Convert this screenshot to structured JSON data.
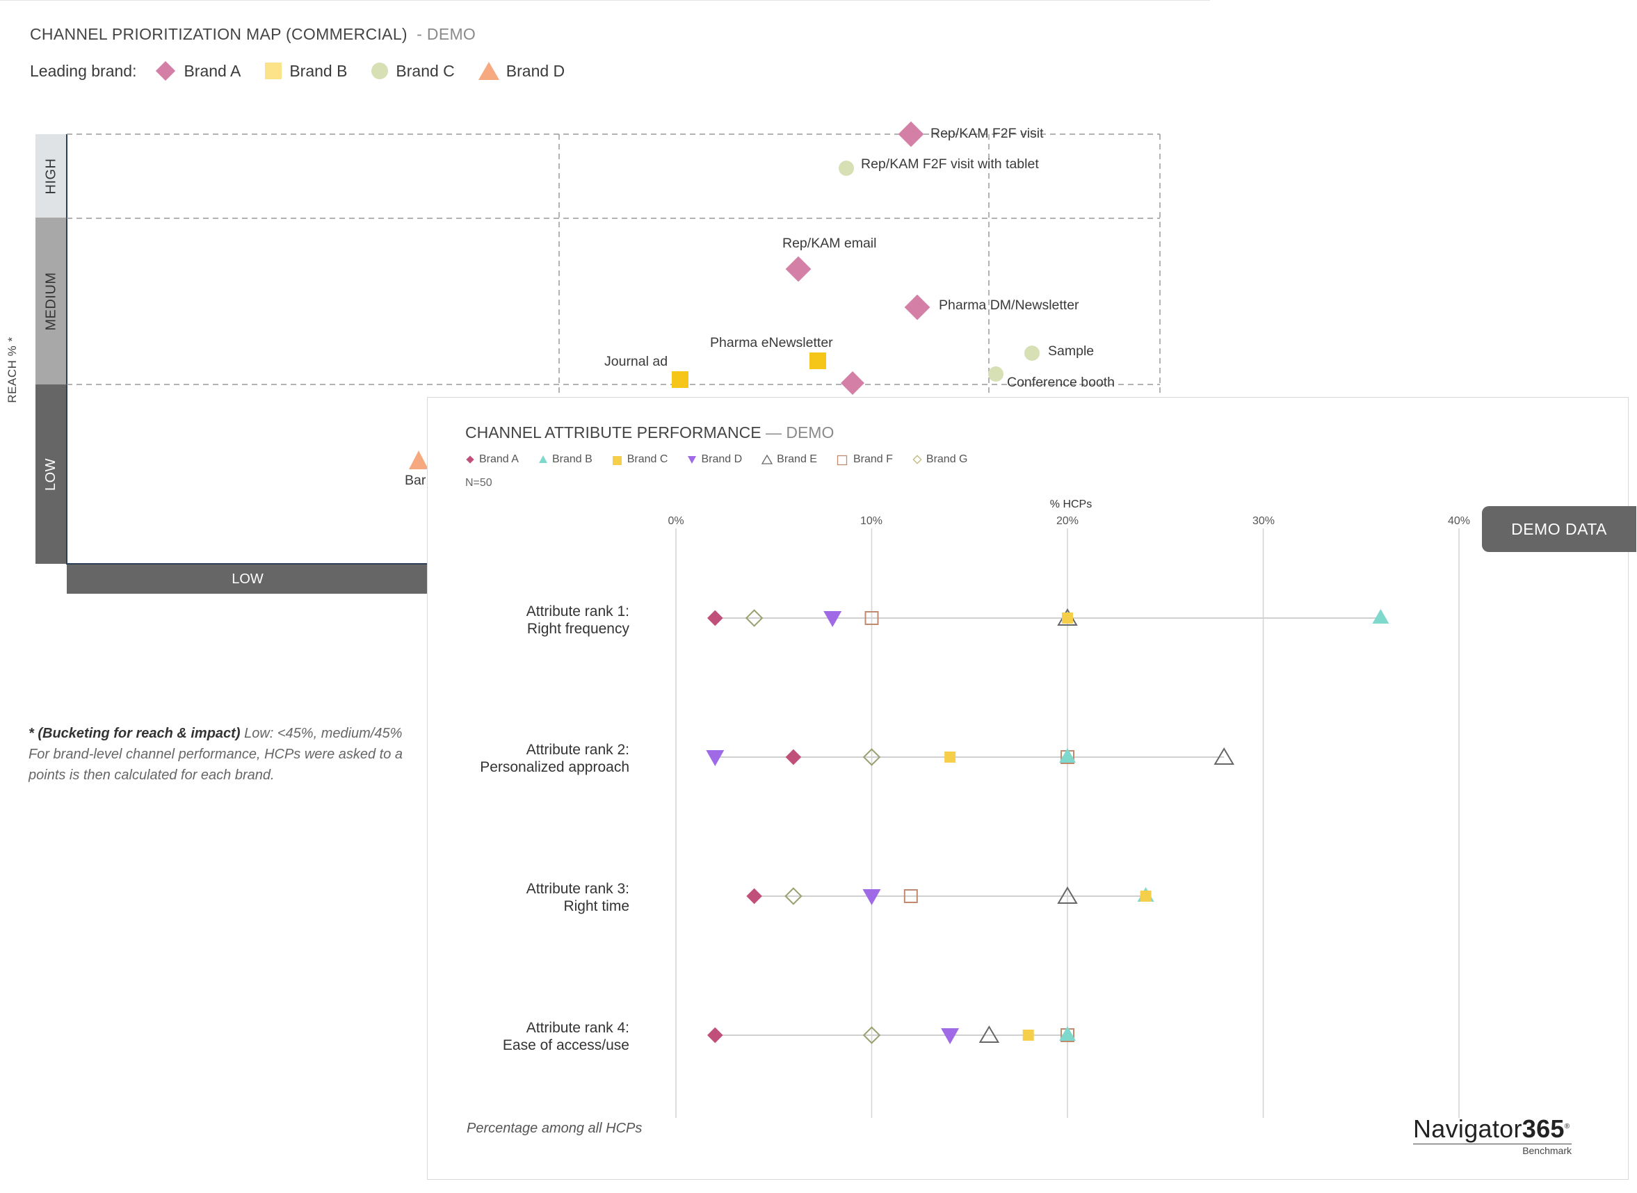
{
  "back_panel": {
    "title": "CHANNEL PRIORITIZATION MAP (COMMERCIAL)",
    "title_suffix": "- DEMO",
    "legend_label": "Leading brand:",
    "legend": [
      {
        "name": "Brand A",
        "shape": "diamond",
        "color": "#d47fa6"
      },
      {
        "name": "Brand B",
        "shape": "square",
        "color": "#fce38a"
      },
      {
        "name": "Brand C",
        "shape": "circle",
        "color": "#d6e0b4"
      },
      {
        "name": "Brand D",
        "shape": "triangle",
        "color": "#f6a97f"
      }
    ],
    "reach_axis_label": "REACH % *",
    "reach_buckets": [
      "HIGH",
      "MEDIUM",
      "LOW"
    ],
    "impact_bucket_visible": "LOW",
    "footnote_bold": "* (Bucketing for reach & impact)",
    "footnote_line1": " Low: <45%, medium/45%",
    "footnote_line2": "For brand-level channel performance, HCPs were asked to a",
    "footnote_line3": "points is then calculated for each brand."
  },
  "front_panel": {
    "title": "CHANNEL ATTRIBUTE PERFORMANCE",
    "title_suffix": "— DEMO",
    "n_label": "N=50",
    "badge": "DEMO DATA",
    "footnote": "Percentage among all HCPs",
    "logo_main": "Navigator",
    "logo_bold": "365",
    "logo_sub": "Benchmark",
    "legend": [
      {
        "name": "Brand A",
        "shape": "diamond",
        "color": "#c0507a"
      },
      {
        "name": "Brand B",
        "shape": "triangle",
        "color": "#7fd8cc"
      },
      {
        "name": "Brand C",
        "shape": "square",
        "color": "#f5cf4a"
      },
      {
        "name": "Brand D",
        "shape": "triangle-down",
        "color": "#a06ae6"
      },
      {
        "name": "Brand E",
        "shape": "triangle-open",
        "color": "#666666"
      },
      {
        "name": "Brand F",
        "shape": "square-open",
        "color": "#c08a70"
      },
      {
        "name": "Brand G",
        "shape": "diamond-open",
        "color": "#9aa070"
      }
    ]
  },
  "chart_data": [
    {
      "type": "scatter",
      "title": "CHANNEL PRIORITIZATION MAP (COMMERCIAL)",
      "ylabel": "REACH % *",
      "y_buckets": [
        "LOW",
        "MEDIUM",
        "HIGH"
      ],
      "points": [
        {
          "label": "Rep/KAM F2F visit",
          "brand": "Brand A",
          "x": 63,
          "y": 86
        },
        {
          "label": "Rep/KAM F2F visit with tablet",
          "brand": "Brand C",
          "x": 57,
          "y": 82
        },
        {
          "label": "Rep/KAM email",
          "brand": "Brand A",
          "x": 52,
          "y": 67
        },
        {
          "label": "Pharma DM/Newsletter",
          "brand": "Brand A",
          "x": 59,
          "y": 63
        },
        {
          "label": "Pharma eNewsletter",
          "brand": "Brand B",
          "x": 48,
          "y": 54
        },
        {
          "label": "Journal ad",
          "brand": "Brand B",
          "x": 37,
          "y": 52
        },
        {
          "label": "Sample",
          "brand": "Brand C",
          "x": 75,
          "y": 56
        },
        {
          "label": "Conference booth",
          "brand": "Brand C",
          "x": 72,
          "y": 53
        },
        {
          "label": "",
          "brand": "Brand A",
          "x": 55,
          "y": 51
        },
        {
          "label": "Bar",
          "brand": "Brand D",
          "x": 26,
          "y": 38
        }
      ]
    },
    {
      "type": "scatter",
      "title": "CHANNEL ATTRIBUTE PERFORMANCE",
      "xlabel": "% HCPs",
      "xlim": [
        0,
        40
      ],
      "xticks": [
        "0%",
        "10%",
        "20%",
        "30%",
        "40%"
      ],
      "categories": [
        [
          "Attribute rank 1:",
          "Right frequency"
        ],
        [
          "Attribute rank 2:",
          "Personalized approach"
        ],
        [
          "Attribute rank 3:",
          "Right time"
        ],
        [
          "Attribute rank 4:",
          "Ease of access/use"
        ]
      ],
      "series": [
        {
          "name": "Brand A",
          "values": [
            2,
            6,
            4,
            2
          ]
        },
        {
          "name": "Brand B",
          "values": [
            36,
            20,
            24,
            20
          ]
        },
        {
          "name": "Brand C",
          "values": [
            20,
            14,
            24,
            18
          ]
        },
        {
          "name": "Brand D",
          "values": [
            8,
            2,
            10,
            14
          ]
        },
        {
          "name": "Brand E",
          "values": [
            20,
            28,
            20,
            16
          ]
        },
        {
          "name": "Brand F",
          "values": [
            10,
            20,
            12,
            20
          ]
        },
        {
          "name": "Brand G",
          "values": [
            4,
            10,
            6,
            10
          ]
        }
      ]
    }
  ]
}
